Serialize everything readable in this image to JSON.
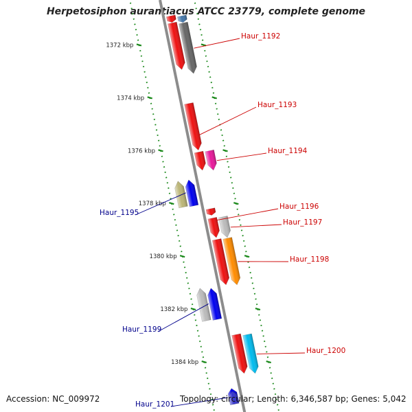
{
  "title": "Herpetosiphon aurantiacus ATCC 23779, complete genome",
  "accession_text": "Accession: NC_009972",
  "summary_text": "Topology: circular; Length: 6,346,587 bp; Genes: 5,042",
  "colors": {
    "backbone": "#8c8c8c",
    "tick": "#1d8a1d",
    "label_fwd": "#cc0000",
    "label_rev": "#00008b"
  },
  "scale": {
    "unit": "kbp",
    "labels": [
      {
        "text": "1372 kbp",
        "kbp": 1372
      },
      {
        "text": "1374 kbp",
        "kbp": 1374
      },
      {
        "text": "1376 kbp",
        "kbp": 1376
      },
      {
        "text": "1378 kbp",
        "kbp": 1378
      },
      {
        "text": "1380 kbp",
        "kbp": 1380
      },
      {
        "text": "1382 kbp",
        "kbp": 1382
      },
      {
        "text": "1384 kbp",
        "kbp": 1384
      }
    ]
  },
  "genes": [
    {
      "id": "g-top-1",
      "strand": "+",
      "lane": "inner",
      "start": 1370.9,
      "end": 1371.15,
      "color": "#ee1111",
      "label": ""
    },
    {
      "id": "g-top-2",
      "strand": "+",
      "lane": "outer",
      "start": 1370.9,
      "end": 1371.15,
      "color": "#4477aa",
      "label": ""
    },
    {
      "id": "Haur_1192a",
      "strand": "+",
      "lane": "inner",
      "start": 1371.15,
      "end": 1372.95,
      "color": "#ee1111",
      "label": ""
    },
    {
      "id": "Haur_1192",
      "strand": "+",
      "lane": "outer",
      "start": 1371.15,
      "end": 1373.1,
      "color": "#666666",
      "label": "Haur_1192"
    },
    {
      "id": "Haur_1193",
      "strand": "+",
      "lane": "inner",
      "start": 1374.2,
      "end": 1376.0,
      "color": "#ee1111",
      "label": "Haur_1193"
    },
    {
      "id": "Haur_1194a",
      "strand": "+",
      "lane": "inner",
      "start": 1376.05,
      "end": 1376.75,
      "color": "#ee1111",
      "label": ""
    },
    {
      "id": "Haur_1194",
      "strand": "+",
      "lane": "outer",
      "start": 1376.0,
      "end": 1376.75,
      "color": "#e8189a",
      "label": "Haur_1194"
    },
    {
      "id": "Haur_1195a",
      "strand": "-",
      "lane": "outer",
      "start": 1377.15,
      "end": 1378.15,
      "color": "#bbb577",
      "label": ""
    },
    {
      "id": "Haur_1195",
      "strand": "-",
      "lane": "inner",
      "start": 1377.1,
      "end": 1378.1,
      "color": "#0000ee",
      "label": "Haur_1195"
    },
    {
      "id": "Haur_1196",
      "strand": "+",
      "lane": "inner",
      "start": 1378.2,
      "end": 1378.45,
      "color": "#ee1111",
      "label": "Haur_1196"
    },
    {
      "id": "Haur_1197a",
      "strand": "+",
      "lane": "inner",
      "start": 1378.55,
      "end": 1379.3,
      "color": "#ee1111",
      "label": ""
    },
    {
      "id": "Haur_1197",
      "strand": "+",
      "lane": "outer",
      "start": 1378.5,
      "end": 1379.3,
      "color": "#bbbbbb",
      "label": "Haur_1197"
    },
    {
      "id": "Haur_1198a",
      "strand": "+",
      "lane": "inner",
      "start": 1379.35,
      "end": 1381.1,
      "color": "#ee1111",
      "label": ""
    },
    {
      "id": "Haur_1198",
      "strand": "+",
      "lane": "outer",
      "start": 1379.3,
      "end": 1381.1,
      "color": "#ff8c00",
      "label": "Haur_1198"
    },
    {
      "id": "Haur_1199a",
      "strand": "-",
      "lane": "outer",
      "start": 1381.2,
      "end": 1382.45,
      "color": "#bbbbbb",
      "label": ""
    },
    {
      "id": "Haur_1199",
      "strand": "-",
      "lane": "inner",
      "start": 1381.2,
      "end": 1382.4,
      "color": "#0000ee",
      "label": "Haur_1199"
    },
    {
      "id": "Haur_1200a",
      "strand": "+",
      "lane": "inner",
      "start": 1382.95,
      "end": 1384.45,
      "color": "#ee1111",
      "label": ""
    },
    {
      "id": "Haur_1200",
      "strand": "+",
      "lane": "outer",
      "start": 1382.95,
      "end": 1384.45,
      "color": "#00bbee",
      "label": "Haur_1200"
    },
    {
      "id": "Haur_1201a",
      "strand": "-",
      "lane": "inner",
      "start": 1385.0,
      "end": 1385.5,
      "color": "#0000ee",
      "label": ""
    },
    {
      "id": "Haur_1201",
      "strand": "-",
      "lane": "inner",
      "start": 1385.1,
      "end": 1385.6,
      "color": "#3333cc",
      "label": "Haur_1201"
    }
  ]
}
